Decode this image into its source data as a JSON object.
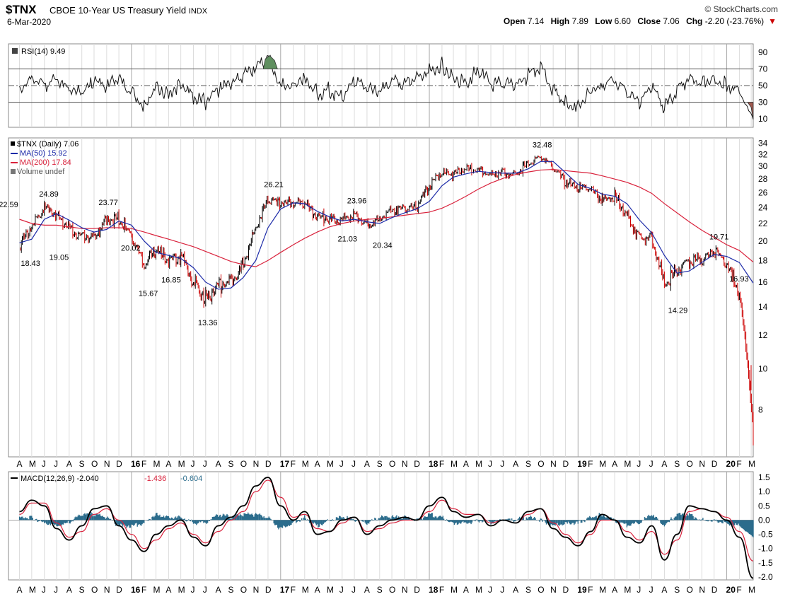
{
  "header": {
    "symbol": "$TNX",
    "description": "CBOE 10-Year US Treasury Yield",
    "exchange": "INDX",
    "date": "6-Mar-2020",
    "brand": "© StockCharts.com",
    "open_label": "Open",
    "open": "7.14",
    "high_label": "High",
    "high": "7.89",
    "low_label": "Low",
    "low": "6.60",
    "close_label": "Close",
    "close": "7.06",
    "chg_label": "Chg",
    "chg": "-2.20 (-23.76%)",
    "chg_icon": "down-triangle-icon"
  },
  "colors": {
    "price_up": "#000000",
    "price_down": "#cc0000",
    "ma50": "#1c2aa8",
    "ma200": "#d9223c",
    "macd": "#000000",
    "signal": "#d9223c",
    "histogram": "#2b6c8c",
    "rsi_overbought_fill": "#5f8f5f",
    "rsi_oversold_fill": "#a05a50",
    "grid": "#c8c8c8"
  },
  "chart_data": [
    {
      "name": "RSI",
      "type": "line",
      "legend": "RSI(14) 9.49",
      "ylim": [
        0,
        100
      ],
      "yticks": [
        10,
        30,
        50,
        70,
        90
      ],
      "reference_lines": [
        30,
        50,
        70
      ],
      "x": [
        "2015-04-01",
        "2015-05-01",
        "2015-06-01",
        "2015-07-01",
        "2015-08-01",
        "2015-09-01",
        "2015-10-01",
        "2015-11-01",
        "2015-12-01",
        "2016-01-01",
        "2016-02-01",
        "2016-03-01",
        "2016-04-01",
        "2016-05-01",
        "2016-06-01",
        "2016-07-01",
        "2016-08-01",
        "2016-09-01",
        "2016-10-01",
        "2016-11-01",
        "2016-12-01",
        "2017-01-01",
        "2017-02-01",
        "2017-03-01",
        "2017-04-01",
        "2017-05-01",
        "2017-06-01",
        "2017-07-01",
        "2017-08-01",
        "2017-09-01",
        "2017-10-01",
        "2017-11-01",
        "2017-12-01",
        "2018-01-01",
        "2018-02-01",
        "2018-03-01",
        "2018-04-01",
        "2018-05-01",
        "2018-06-01",
        "2018-07-01",
        "2018-08-01",
        "2018-09-01",
        "2018-10-01",
        "2018-11-01",
        "2018-12-01",
        "2019-01-01",
        "2019-02-01",
        "2019-03-01",
        "2019-04-01",
        "2019-05-01",
        "2019-06-01",
        "2019-07-01",
        "2019-08-01",
        "2019-09-01",
        "2019-10-01",
        "2019-11-01",
        "2019-12-01",
        "2020-01-01",
        "2020-02-01",
        "2020-03-06"
      ],
      "values": [
        45,
        62,
        50,
        58,
        44,
        40,
        55,
        46,
        60,
        42,
        25,
        50,
        40,
        54,
        35,
        30,
        45,
        52,
        60,
        72,
        85,
        50,
        52,
        62,
        40,
        45,
        35,
        55,
        45,
        40,
        58,
        52,
        60,
        70,
        75,
        60,
        55,
        68,
        50,
        52,
        48,
        62,
        72,
        45,
        30,
        25,
        45,
        50,
        58,
        40,
        28,
        48,
        22,
        45,
        60,
        55,
        58,
        52,
        42,
        9.49
      ]
    },
    {
      "name": "Price",
      "type": "line",
      "title": "$TNX (Daily) 7.06",
      "legend": [
        "$TNX (Daily) 7.06",
        "MA(50) 15.92",
        "MA(200) 17.84",
        "Volume undef"
      ],
      "scale": "log",
      "ylim": [
        6.2,
        35
      ],
      "yticks": [
        8,
        10,
        12,
        14,
        16,
        18,
        20,
        22,
        24,
        26,
        28,
        30,
        32,
        34
      ],
      "x": [
        "2015-04-01",
        "2015-05-01",
        "2015-06-01",
        "2015-07-01",
        "2015-08-01",
        "2015-09-01",
        "2015-10-01",
        "2015-11-01",
        "2015-12-01",
        "2016-01-01",
        "2016-02-01",
        "2016-03-01",
        "2016-04-01",
        "2016-05-01",
        "2016-06-01",
        "2016-07-01",
        "2016-08-01",
        "2016-09-01",
        "2016-10-01",
        "2016-11-01",
        "2016-12-01",
        "2017-01-01",
        "2017-02-01",
        "2017-03-01",
        "2017-04-01",
        "2017-05-01",
        "2017-06-01",
        "2017-07-01",
        "2017-08-01",
        "2017-09-01",
        "2017-10-01",
        "2017-11-01",
        "2017-12-01",
        "2018-01-01",
        "2018-02-01",
        "2018-03-01",
        "2018-04-01",
        "2018-05-01",
        "2018-06-01",
        "2018-07-01",
        "2018-08-01",
        "2018-09-01",
        "2018-10-01",
        "2018-11-01",
        "2018-12-01",
        "2019-01-01",
        "2019-02-01",
        "2019-03-01",
        "2019-04-01",
        "2019-05-01",
        "2019-06-01",
        "2019-07-01",
        "2019-08-01",
        "2019-09-01",
        "2019-10-01",
        "2019-11-01",
        "2019-12-01",
        "2020-01-01",
        "2020-02-01",
        "2020-03-06"
      ],
      "series": [
        {
          "name": "$TNX",
          "values": [
            19.5,
            21.5,
            24.0,
            23.0,
            21.5,
            20.5,
            20.5,
            22.5,
            22.5,
            20.5,
            17.5,
            19.0,
            18.0,
            18.5,
            16.0,
            14.6,
            15.8,
            16.0,
            17.6,
            21.5,
            25.0,
            24.5,
            24.6,
            24.5,
            22.8,
            22.5,
            22.4,
            23.2,
            21.8,
            22.5,
            23.7,
            23.8,
            24.0,
            27.0,
            29.0,
            28.7,
            29.6,
            29.5,
            28.7,
            29.0,
            28.8,
            30.5,
            31.5,
            30.0,
            27.5,
            26.8,
            26.5,
            25.0,
            25.5,
            23.0,
            20.2,
            20.4,
            15.8,
            17.0,
            18.0,
            18.0,
            19.0,
            17.6,
            15.0,
            7.06
          ]
        },
        {
          "name": "MA(50)",
          "values": [
            19.8,
            20.2,
            22.5,
            23.2,
            22.4,
            21.5,
            21.0,
            21.3,
            22.3,
            21.8,
            20.0,
            18.8,
            18.5,
            18.2,
            17.3,
            16.0,
            15.4,
            15.5,
            16.4,
            18.0,
            21.5,
            23.8,
            24.6,
            24.5,
            23.5,
            22.8,
            22.3,
            22.5,
            22.2,
            22.0,
            22.7,
            23.3,
            23.8,
            24.8,
            27.0,
            28.3,
            28.8,
            29.2,
            29.0,
            28.9,
            28.9,
            29.6,
            30.8,
            30.8,
            29.0,
            27.2,
            26.6,
            25.8,
            25.5,
            24.5,
            22.4,
            20.9,
            18.5,
            16.8,
            17.0,
            17.8,
            18.6,
            18.4,
            17.8,
            15.92
          ]
        },
        {
          "name": "MA(200)",
          "values": [
            22.5,
            22.0,
            21.8,
            21.8,
            21.6,
            21.4,
            21.4,
            21.5,
            21.5,
            21.4,
            21.0,
            20.6,
            20.2,
            19.8,
            19.4,
            18.9,
            18.4,
            17.9,
            17.6,
            17.4,
            18.0,
            18.8,
            19.6,
            20.3,
            21.0,
            21.6,
            22.0,
            22.3,
            22.5,
            22.6,
            22.8,
            23.0,
            23.2,
            23.4,
            23.9,
            24.6,
            25.5,
            26.5,
            27.4,
            28.1,
            28.7,
            29.1,
            29.4,
            29.5,
            29.3,
            29.1,
            28.9,
            28.5,
            28.0,
            27.5,
            26.8,
            25.9,
            24.5,
            23.3,
            22.2,
            21.2,
            20.4,
            19.6,
            19.0,
            17.84
          ]
        }
      ],
      "annotations": [
        {
          "label": "22.59",
          "x": "2015-03-05",
          "y": 23.5
        },
        {
          "label": "18.43",
          "x": "2015-04-28",
          "y": 18.43
        },
        {
          "label": "24.89",
          "x": "2015-06-12",
          "y": 24.89
        },
        {
          "label": "19.05",
          "x": "2015-07-07",
          "y": 19.05
        },
        {
          "label": "23.77",
          "x": "2015-11-05",
          "y": 23.77
        },
        {
          "label": "20.02",
          "x": "2015-12-30",
          "y": 20.02
        },
        {
          "label": "15.67",
          "x": "2016-02-11",
          "y": 15.67
        },
        {
          "label": "16.85",
          "x": "2016-04-07",
          "y": 16.85
        },
        {
          "label": "13.36",
          "x": "2016-07-06",
          "y": 13.36
        },
        {
          "label": "26.21",
          "x": "2016-12-15",
          "y": 26.21
        },
        {
          "label": "23.96",
          "x": "2017-07-07",
          "y": 23.96
        },
        {
          "label": "21.03",
          "x": "2017-06-14",
          "y": 21.03
        },
        {
          "label": "20.34",
          "x": "2017-09-08",
          "y": 20.34
        },
        {
          "label": "32.48",
          "x": "2018-10-05",
          "y": 32.48
        },
        {
          "label": "19.71",
          "x": "2019-12-13",
          "y": 19.71
        },
        {
          "label": "14.29",
          "x": "2019-09-03",
          "y": 14.29
        },
        {
          "label": "16.93",
          "x": "2020-01-31",
          "y": 16.93
        }
      ]
    },
    {
      "name": "MACD",
      "type": "line",
      "legend": [
        "MACD(12,26,9) -2.040",
        "-1.436",
        "-0.604"
      ],
      "ylim": [
        -2.1,
        1.7
      ],
      "yticks": [
        1.5,
        1.0,
        0.5,
        0.0,
        -0.5,
        -1.0,
        -1.5,
        -2.0
      ],
      "x": [
        "2015-04-01",
        "2015-05-01",
        "2015-06-01",
        "2015-07-01",
        "2015-08-01",
        "2015-09-01",
        "2015-10-01",
        "2015-11-01",
        "2015-12-01",
        "2016-01-01",
        "2016-02-01",
        "2016-03-01",
        "2016-04-01",
        "2016-05-01",
        "2016-06-01",
        "2016-07-01",
        "2016-08-01",
        "2016-09-01",
        "2016-10-01",
        "2016-11-01",
        "2016-12-01",
        "2017-01-01",
        "2017-02-01",
        "2017-03-01",
        "2017-04-01",
        "2017-05-01",
        "2017-06-01",
        "2017-07-01",
        "2017-08-01",
        "2017-09-01",
        "2017-10-01",
        "2017-11-01",
        "2017-12-01",
        "2018-01-01",
        "2018-02-01",
        "2018-03-01",
        "2018-04-01",
        "2018-05-01",
        "2018-06-01",
        "2018-07-01",
        "2018-08-01",
        "2018-09-01",
        "2018-10-01",
        "2018-11-01",
        "2018-12-01",
        "2019-01-01",
        "2019-02-01",
        "2019-03-01",
        "2019-04-01",
        "2019-05-01",
        "2019-06-01",
        "2019-07-01",
        "2019-08-01",
        "2019-09-01",
        "2019-10-01",
        "2019-11-01",
        "2019-12-01",
        "2020-01-01",
        "2020-02-01",
        "2020-03-06"
      ],
      "series": [
        {
          "name": "MACD",
          "values": [
            0.3,
            0.7,
            0.5,
            -0.3,
            -0.7,
            -0.2,
            0.4,
            0.5,
            -0.2,
            -0.7,
            -1.1,
            -0.5,
            -0.2,
            0.0,
            -0.6,
            -0.9,
            -0.2,
            0.1,
            0.5,
            1.2,
            1.5,
            0.5,
            0.0,
            0.3,
            -0.5,
            -0.4,
            0.0,
            0.1,
            -0.5,
            -0.2,
            0.0,
            0.1,
            0.0,
            0.5,
            0.8,
            0.3,
            0.1,
            0.2,
            -0.2,
            0.0,
            -0.1,
            0.3,
            0.4,
            -0.3,
            -0.6,
            -0.9,
            -0.4,
            0.2,
            0.0,
            -0.6,
            -0.8,
            -0.2,
            -1.4,
            -0.5,
            0.5,
            0.4,
            0.3,
            0.0,
            -0.6,
            -2.04
          ]
        },
        {
          "name": "Signal",
          "values": [
            0.2,
            0.6,
            0.6,
            -0.1,
            -0.6,
            -0.4,
            0.2,
            0.4,
            0.0,
            -0.5,
            -1.0,
            -0.7,
            -0.3,
            -0.1,
            -0.5,
            -0.8,
            -0.4,
            0.0,
            0.3,
            1.0,
            1.4,
            0.8,
            0.1,
            0.2,
            -0.3,
            -0.4,
            -0.1,
            0.1,
            -0.4,
            -0.3,
            -0.1,
            0.0,
            0.0,
            0.3,
            0.7,
            0.4,
            0.2,
            0.2,
            -0.1,
            0.0,
            -0.1,
            0.2,
            0.4,
            -0.1,
            -0.5,
            -0.8,
            -0.5,
            0.0,
            0.0,
            -0.4,
            -0.7,
            -0.4,
            -1.2,
            -0.7,
            0.3,
            0.4,
            0.3,
            0.1,
            -0.4,
            -1.436
          ]
        },
        {
          "name": "Histogram",
          "values": [
            0.1,
            0.1,
            -0.1,
            -0.2,
            -0.1,
            0.2,
            0.2,
            0.1,
            -0.2,
            -0.2,
            -0.1,
            0.2,
            0.1,
            0.1,
            -0.1,
            -0.1,
            0.2,
            0.1,
            0.2,
            0.2,
            0.1,
            -0.3,
            -0.1,
            0.1,
            -0.2,
            0.0,
            0.1,
            0.0,
            -0.1,
            0.1,
            0.1,
            0.1,
            0.0,
            0.2,
            0.1,
            -0.1,
            -0.1,
            0.0,
            -0.1,
            0.0,
            0.0,
            0.1,
            0.0,
            -0.2,
            -0.1,
            -0.1,
            0.1,
            0.2,
            0.0,
            -0.2,
            -0.1,
            0.2,
            -0.2,
            0.2,
            0.2,
            0.0,
            0.0,
            -0.1,
            -0.2,
            -0.604
          ]
        }
      ]
    }
  ],
  "x_axis": {
    "start": "2015-03-05",
    "end": "2020-03-06",
    "month_letters": [
      "J",
      "F",
      "M",
      "A",
      "M",
      "J",
      "J",
      "A",
      "S",
      "O",
      "N",
      "D"
    ],
    "year_labels": {
      "2016": "16",
      "2017": "17",
      "2018": "18",
      "2019": "19",
      "2020": "20"
    }
  }
}
